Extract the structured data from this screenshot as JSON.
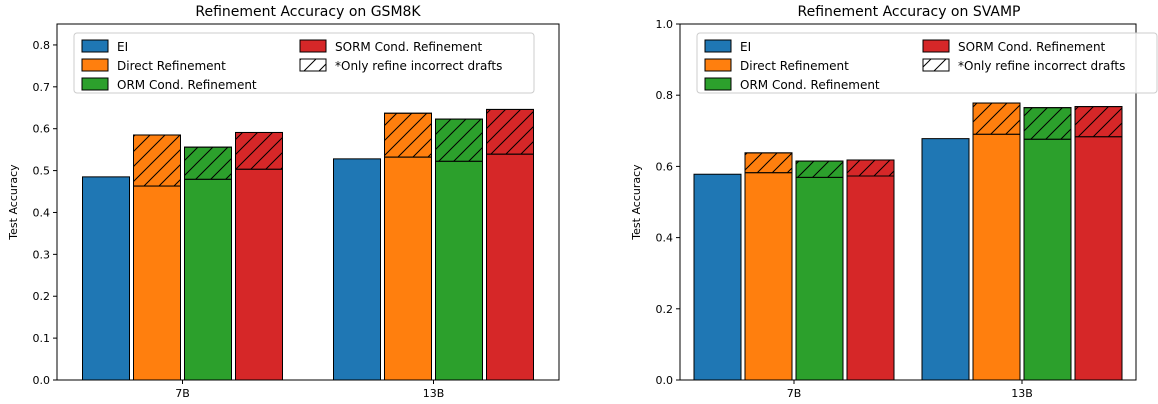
{
  "chart_data": [
    {
      "type": "bar",
      "title": "Refinement Accuracy on GSM8K",
      "xlabel": "",
      "ylabel": "Test Accuracy",
      "ylim": [
        0,
        0.85
      ],
      "yticks": [
        "0.0",
        "0.1",
        "0.2",
        "0.3",
        "0.4",
        "0.5",
        "0.6",
        "0.7",
        "0.8"
      ],
      "categories": [
        "7B",
        "13B"
      ],
      "series": [
        {
          "name": "EI",
          "color": "#1f77b4",
          "values": [
            0.485,
            0.528
          ],
          "refined_values": [
            null,
            null
          ]
        },
        {
          "name": "Direct Refinement",
          "color": "#ff7f0e",
          "values": [
            0.463,
            0.532
          ],
          "refined_values": [
            0.585,
            0.637
          ]
        },
        {
          "name": "ORM Cond. Refinement",
          "color": "#2ca02c",
          "values": [
            0.479,
            0.522
          ],
          "refined_values": [
            0.556,
            0.623
          ]
        },
        {
          "name": "SORM Cond. Refinement",
          "color": "#d62728",
          "values": [
            0.503,
            0.539
          ],
          "refined_values": [
            0.591,
            0.646
          ]
        }
      ],
      "hatch_legend": "*Only refine incorrect drafts",
      "legend_position": "top"
    },
    {
      "type": "bar",
      "title": "Refinement Accuracy on SVAMP",
      "xlabel": "",
      "ylabel": "Test Accuracy",
      "ylim": [
        0,
        1.0
      ],
      "yticks": [
        "0.0",
        "0.2",
        "0.4",
        "0.6",
        "0.8",
        "1.0"
      ],
      "categories": [
        "7B",
        "13B"
      ],
      "series": [
        {
          "name": "EI",
          "color": "#1f77b4",
          "values": [
            0.578,
            0.678
          ],
          "refined_values": [
            null,
            null
          ]
        },
        {
          "name": "Direct Refinement",
          "color": "#ff7f0e",
          "values": [
            0.582,
            0.69
          ],
          "refined_values": [
            0.638,
            0.778
          ]
        },
        {
          "name": "ORM Cond. Refinement",
          "color": "#2ca02c",
          "values": [
            0.569,
            0.676
          ],
          "refined_values": [
            0.615,
            0.765
          ]
        },
        {
          "name": "SORM Cond. Refinement",
          "color": "#d62728",
          "values": [
            0.573,
            0.683
          ],
          "refined_values": [
            0.618,
            0.768
          ]
        }
      ],
      "hatch_legend": "*Only refine incorrect drafts",
      "legend_position": "top"
    }
  ]
}
